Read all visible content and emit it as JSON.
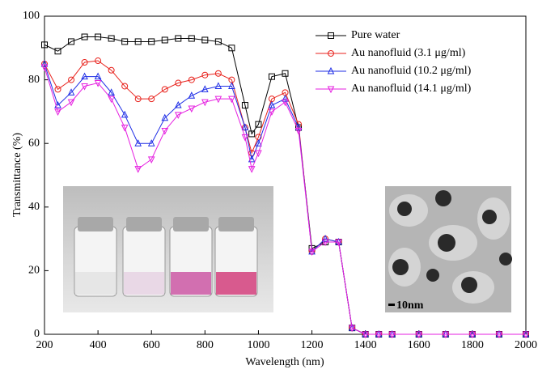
{
  "chart_data": {
    "type": "line",
    "xlabel": "Wavelength (nm)",
    "ylabel": "Transmittance (%)",
    "x": [
      200,
      250,
      300,
      350,
      400,
      450,
      500,
      550,
      600,
      650,
      700,
      750,
      800,
      850,
      900,
      950,
      975,
      1000,
      1050,
      1100,
      1150,
      1200,
      1250,
      1300,
      1350,
      1400,
      1450,
      1500,
      1600,
      1700,
      1800,
      1900,
      2000
    ],
    "series": [
      {
        "name": "Pure water",
        "color": "#000000",
        "marker": "square",
        "values": [
          91,
          89,
          92,
          93.5,
          93.5,
          93,
          92,
          92,
          92,
          92.5,
          93,
          93,
          92.5,
          92,
          90,
          72,
          63,
          66,
          81,
          82,
          65,
          27,
          29,
          29,
          2,
          0,
          0,
          0,
          0,
          0,
          0,
          0,
          0
        ]
      },
      {
        "name": "Au nanofluid  (3.1 μg/ml)",
        "color": "#e8221c",
        "marker": "circle",
        "values": [
          85,
          77,
          80,
          85.5,
          86,
          83,
          78,
          74,
          74,
          77,
          79,
          80,
          81.5,
          82,
          80,
          65,
          57,
          62,
          74,
          76,
          66,
          26,
          30,
          29,
          2,
          0,
          0,
          0,
          0,
          0,
          0,
          0,
          0
        ]
      },
      {
        "name": "Au nanofluid  (10.2 μg/ml)",
        "color": "#1f2ee6",
        "marker": "triangle-up",
        "values": [
          85,
          72,
          76,
          81,
          81,
          76,
          69,
          60,
          60,
          68,
          72,
          75,
          77,
          78,
          78,
          65,
          55,
          60,
          72,
          74,
          65,
          26,
          30,
          29,
          2,
          0,
          0,
          0,
          0,
          0,
          0,
          0,
          0
        ]
      },
      {
        "name": "Au nanofluid  (14.1 μg/ml)",
        "color": "#e51fe0",
        "marker": "triangle-down",
        "values": [
          84,
          70,
          73,
          78,
          79,
          74,
          65,
          52,
          55,
          64,
          69,
          71,
          73,
          74,
          74,
          62,
          52,
          57,
          70,
          73,
          64,
          26,
          29,
          29,
          2,
          0,
          0,
          0,
          0,
          0,
          0,
          0,
          0
        ]
      }
    ],
    "xlim": [
      200,
      2000
    ],
    "ylim": [
      0,
      100
    ],
    "xticks": [
      200,
      400,
      600,
      800,
      1000,
      1200,
      1400,
      1600,
      1800,
      2000
    ],
    "yticks": [
      0,
      20,
      40,
      60,
      80,
      100
    ],
    "legend": "upper right",
    "annotations": [
      "10nm"
    ]
  }
}
